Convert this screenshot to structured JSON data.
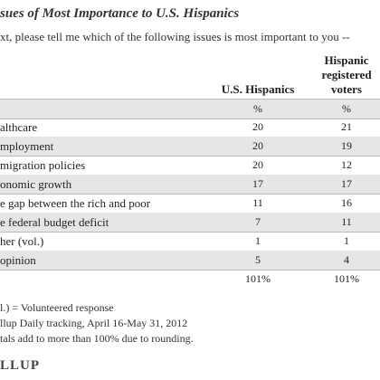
{
  "header": {
    "title": "sues of Most Importance to U.S. Hispanics",
    "subtitle": "xt, please tell me which of the following issues is most important to you --"
  },
  "table": {
    "columns": [
      "U.S. Hispanics",
      "Hispanic registered voters"
    ],
    "units": [
      "%",
      "%"
    ],
    "rows": [
      [
        "althcare",
        "20",
        "21"
      ],
      [
        "mployment",
        "20",
        "19"
      ],
      [
        "migration policies",
        "20",
        "12"
      ],
      [
        "onomic growth",
        "17",
        "17"
      ],
      [
        "e gap between the rich and poor",
        "11",
        "16"
      ],
      [
        "e federal budget deficit",
        "7",
        "11"
      ],
      [
        "her (vol.)",
        "1",
        "1"
      ],
      [
        "opinion",
        "5",
        "4"
      ]
    ],
    "totals": [
      "101%",
      "101%"
    ]
  },
  "notes": [
    "l.) = Volunteered response",
    "llup Daily tracking, April 16-May 31, 2012",
    "tals add to more than 100% due to rounding."
  ],
  "logo": "LLUP"
}
